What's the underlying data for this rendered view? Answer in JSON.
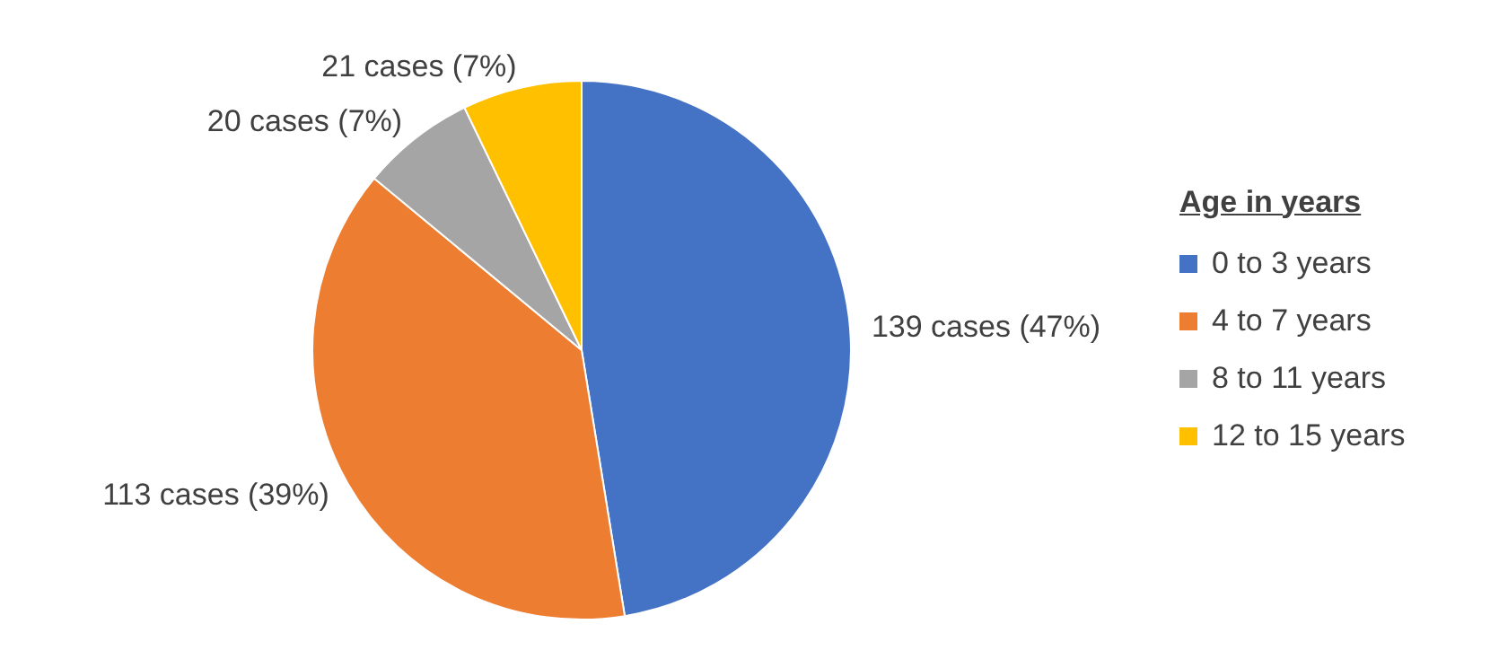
{
  "chart_data": {
    "type": "pie",
    "legend_title": "Age in years",
    "legend": "right",
    "categories": [
      "0 to 3 years",
      "4 to 7 years",
      "8 to 11 years",
      "12 to 15 years"
    ],
    "values": [
      139,
      113,
      20,
      21
    ],
    "colors": [
      "#4472c4",
      "#ed7d31",
      "#a5a5a5",
      "#ffc000"
    ],
    "value_labels": [
      "139 cases (47%)",
      "113 cases (39%)",
      "20 cases (7%)",
      "21 cases (7%)"
    ]
  }
}
